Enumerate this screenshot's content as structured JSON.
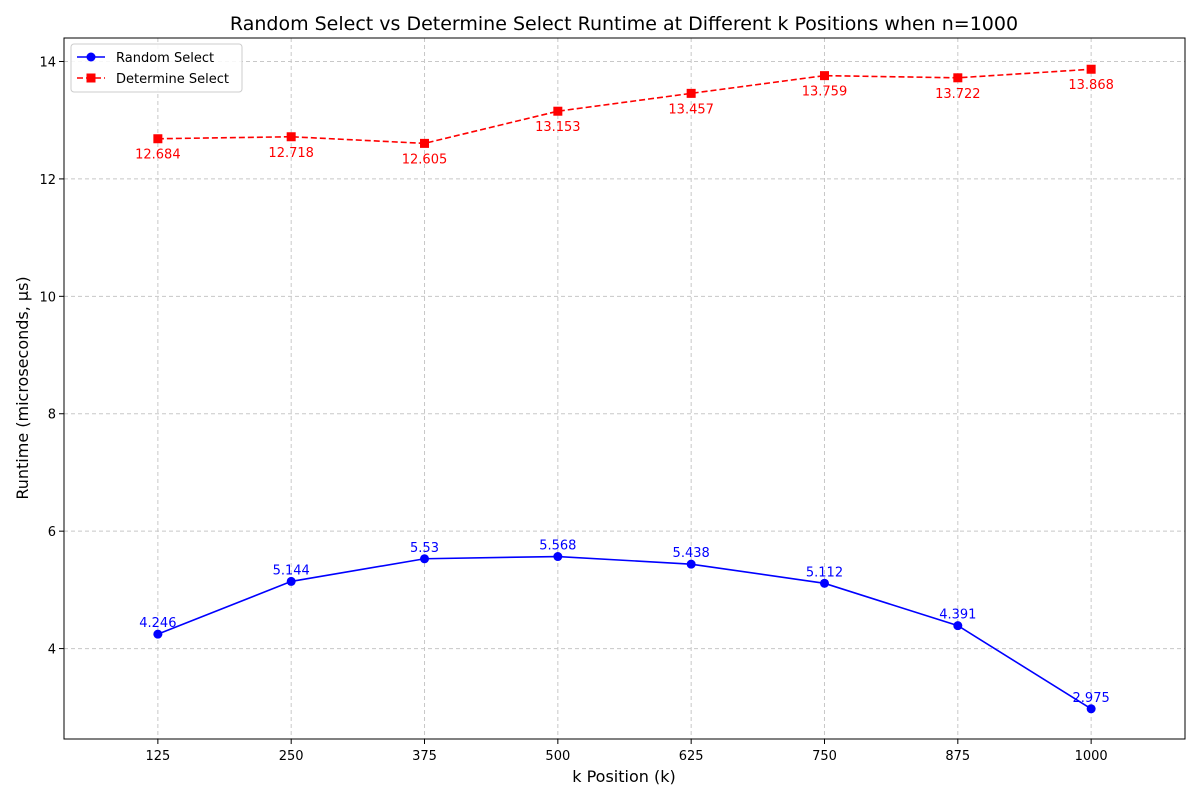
{
  "chart_data": {
    "type": "line",
    "title": "Random Select vs Determine Select Runtime at Different k Positions when n=1000",
    "xlabel": "k Position (k)",
    "ylabel": "Runtime (microseconds, μs)",
    "x": [
      125,
      250,
      375,
      500,
      625,
      750,
      875,
      1000
    ],
    "xticks": [
      "125",
      "250",
      "375",
      "500",
      "625",
      "750",
      "875",
      "1000"
    ],
    "yticks": [
      "4",
      "6",
      "8",
      "10",
      "12",
      "14"
    ],
    "xlim": [
      37,
      1088
    ],
    "ylim": [
      2.46,
      14.4
    ],
    "grid": true,
    "legend_position": "top-left",
    "series": [
      {
        "name": "Random Select",
        "color": "#0000ff",
        "line_style": "solid",
        "marker": "circle",
        "label_position": "above",
        "values": [
          4.246,
          5.144,
          5.53,
          5.568,
          5.438,
          5.112,
          4.391,
          2.975
        ],
        "labels": [
          "4.246",
          "5.144",
          "5.53",
          "5.568",
          "5.438",
          "5.112",
          "4.391",
          "2.975"
        ]
      },
      {
        "name": "Determine Select",
        "color": "#ff0000",
        "line_style": "dashed",
        "marker": "square",
        "label_position": "below",
        "values": [
          12.684,
          12.718,
          12.605,
          13.153,
          13.457,
          13.759,
          13.722,
          13.868
        ],
        "labels": [
          "12.684",
          "12.718",
          "12.605",
          "13.153",
          "13.457",
          "13.759",
          "13.722",
          "13.868"
        ]
      }
    ]
  }
}
